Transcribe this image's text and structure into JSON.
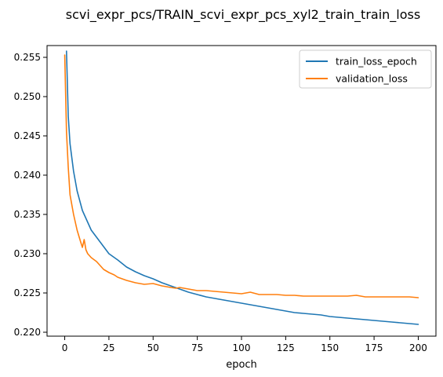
{
  "chart_data": {
    "type": "line",
    "title": "scvi_expr_pcs/TRAIN_scvi_expr_pcs_xyl2_train_train_loss",
    "xlabel": "epoch",
    "ylabel": "",
    "xlim": [
      -10,
      210
    ],
    "ylim": [
      0.2195,
      0.2565
    ],
    "grid": false,
    "legend_position": "top-right",
    "xticks": [
      0,
      25,
      50,
      75,
      100,
      125,
      150,
      175,
      200
    ],
    "xtick_labels": [
      "0",
      "25",
      "50",
      "75",
      "100",
      "125",
      "150",
      "175",
      "200"
    ],
    "yticks": [
      0.22,
      0.225,
      0.23,
      0.235,
      0.24,
      0.245,
      0.25,
      0.255
    ],
    "ytick_labels": [
      "0.220",
      "0.225",
      "0.230",
      "0.235",
      "0.240",
      "0.245",
      "0.250",
      "0.255"
    ],
    "series": [
      {
        "name": "train_loss_epoch",
        "color": "#1f77b4",
        "points": [
          [
            1,
            0.2558
          ],
          [
            2,
            0.2475
          ],
          [
            3,
            0.244
          ],
          [
            5,
            0.2405
          ],
          [
            7,
            0.238
          ],
          [
            10,
            0.2355
          ],
          [
            13,
            0.234
          ],
          [
            15,
            0.233
          ],
          [
            20,
            0.2315
          ],
          [
            25,
            0.23
          ],
          [
            30,
            0.2292
          ],
          [
            35,
            0.2283
          ],
          [
            40,
            0.2277
          ],
          [
            45,
            0.2272
          ],
          [
            50,
            0.2268
          ],
          [
            55,
            0.2263
          ],
          [
            60,
            0.2259
          ],
          [
            65,
            0.2255
          ],
          [
            70,
            0.2251
          ],
          [
            75,
            0.2248
          ],
          [
            80,
            0.2245
          ],
          [
            85,
            0.2243
          ],
          [
            90,
            0.2241
          ],
          [
            95,
            0.2239
          ],
          [
            100,
            0.2237
          ],
          [
            105,
            0.2235
          ],
          [
            110,
            0.2233
          ],
          [
            115,
            0.2231
          ],
          [
            120,
            0.2229
          ],
          [
            125,
            0.2227
          ],
          [
            130,
            0.2225
          ],
          [
            135,
            0.2224
          ],
          [
            140,
            0.2223
          ],
          [
            145,
            0.2222
          ],
          [
            150,
            0.222
          ],
          [
            155,
            0.2219
          ],
          [
            160,
            0.2218
          ],
          [
            165,
            0.2217
          ],
          [
            170,
            0.2216
          ],
          [
            175,
            0.2215
          ],
          [
            180,
            0.2214
          ],
          [
            185,
            0.2213
          ],
          [
            190,
            0.2212
          ],
          [
            195,
            0.2211
          ],
          [
            200,
            0.221
          ]
        ]
      },
      {
        "name": "validation_loss",
        "color": "#ff7f0e",
        "points": [
          [
            0,
            0.2553
          ],
          [
            1,
            0.2455
          ],
          [
            2,
            0.241
          ],
          [
            3,
            0.2375
          ],
          [
            5,
            0.235
          ],
          [
            7,
            0.233
          ],
          [
            9,
            0.2315
          ],
          [
            10,
            0.2308
          ],
          [
            11,
            0.2318
          ],
          [
            12,
            0.2305
          ],
          [
            13,
            0.23
          ],
          [
            15,
            0.2295
          ],
          [
            18,
            0.229
          ],
          [
            20,
            0.2285
          ],
          [
            22,
            0.228
          ],
          [
            25,
            0.2276
          ],
          [
            28,
            0.2273
          ],
          [
            30,
            0.227
          ],
          [
            35,
            0.2266
          ],
          [
            40,
            0.2263
          ],
          [
            45,
            0.2261
          ],
          [
            50,
            0.2262
          ],
          [
            55,
            0.2259
          ],
          [
            60,
            0.2257
          ],
          [
            63,
            0.2256
          ],
          [
            65,
            0.2257
          ],
          [
            70,
            0.2255
          ],
          [
            75,
            0.2253
          ],
          [
            80,
            0.2253
          ],
          [
            85,
            0.2252
          ],
          [
            90,
            0.2251
          ],
          [
            95,
            0.225
          ],
          [
            100,
            0.2249
          ],
          [
            105,
            0.2251
          ],
          [
            110,
            0.2248
          ],
          [
            115,
            0.2248
          ],
          [
            120,
            0.2248
          ],
          [
            125,
            0.2247
          ],
          [
            130,
            0.2247
          ],
          [
            135,
            0.2246
          ],
          [
            140,
            0.2246
          ],
          [
            145,
            0.2246
          ],
          [
            150,
            0.2246
          ],
          [
            155,
            0.2246
          ],
          [
            160,
            0.2246
          ],
          [
            165,
            0.2247
          ],
          [
            170,
            0.2245
          ],
          [
            175,
            0.2245
          ],
          [
            180,
            0.2245
          ],
          [
            185,
            0.2245
          ],
          [
            190,
            0.2245
          ],
          [
            195,
            0.2245
          ],
          [
            200,
            0.2244
          ]
        ]
      }
    ]
  }
}
